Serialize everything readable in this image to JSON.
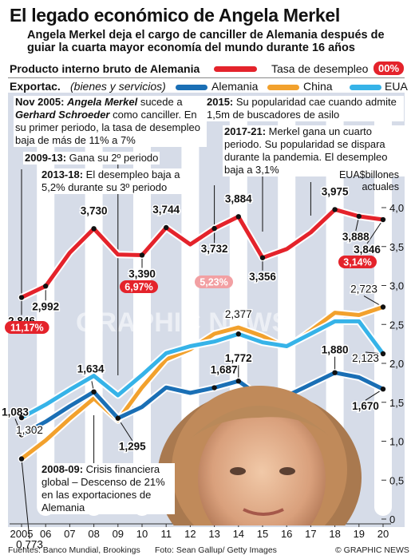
{
  "title": "El legado económico de Angela Merkel",
  "subtitle": "Angela Merkel deja el cargo de canciller de Alemania después de guiar la cuarta mayor economía del mundo durante 16 años",
  "legend": {
    "gdp_label": "Producto interno bruto de Alemania",
    "unemployment_label": "Tasa de desempleo",
    "unemployment_badge": "00%",
    "exports_label": "Exportac.",
    "exports_sub": "(bienes y servicios)",
    "germany": "Alemania",
    "china": "China",
    "usa": "EUA"
  },
  "colors": {
    "gdp": "#e4232b",
    "germany": "#1a6fb5",
    "china": "#f2a12d",
    "usa": "#36b3e8",
    "band": "#ffffff",
    "plot_bg": "#d6dce8"
  },
  "notes": {
    "n2005_date": "Nov 2005:",
    "n2005_name1": "Angela Merkel",
    "n2005_mid": "sucede a",
    "n2005_name2": "Gerhard Schroeder",
    "n2005_end": "como canciller. En su primer periodo, la tasa de desempleo baja de más de 11% a 7%",
    "n2009_date": "2009-13:",
    "n2009_text": "Gana su 2º periodo",
    "n2013_date": "2013-18:",
    "n2013_text": "El desempleo baja a 5,2% durante su 3º periodo",
    "n2015_date": "2015:",
    "n2015_text": "Su popularidad cae cuando admite 1,5m de buscadores de asilo",
    "n2017_date": "2017-21:",
    "n2017_text": "Merkel gana un cuarto periodo. Su popularidad se dispara durante la pandemia. El desempleo baja a 3,1%",
    "n2008_date": "2008-09:",
    "n2008_text": "Crisis financiera global – Descenso de 21% en las exportaciones de Alemania"
  },
  "unit_label": "EUA$billones actuales",
  "chart_data": {
    "type": "line",
    "x": [
      2005,
      2006,
      2007,
      2008,
      2009,
      2010,
      2011,
      2012,
      2013,
      2014,
      2015,
      2016,
      2017,
      2018,
      2019,
      2020
    ],
    "x_tick_labels": [
      "2005",
      "06",
      "07",
      "08",
      "09",
      "10",
      "11",
      "12",
      "13",
      "14",
      "15",
      "16",
      "17",
      "18",
      "19",
      "20"
    ],
    "ylim": [
      0,
      4.0
    ],
    "y_ticks": [
      "0",
      "0,5",
      "1,0",
      "1,5",
      "2,0",
      "2,5",
      "3,0",
      "3,5",
      "4,0"
    ],
    "series": [
      {
        "name": "Producto interno bruto de Alemania",
        "key": "gdp",
        "values": [
          2.846,
          2.992,
          3.421,
          3.73,
          3.397,
          3.39,
          3.744,
          3.527,
          3.732,
          3.884,
          3.356,
          3.468,
          3.682,
          3.975,
          3.888,
          3.846
        ]
      },
      {
        "name": "Alemania",
        "key": "germany",
        "values": [
          1.083,
          1.25,
          1.45,
          1.634,
          1.295,
          1.44,
          1.69,
          1.62,
          1.687,
          1.772,
          1.555,
          1.58,
          1.73,
          1.88,
          1.82,
          1.67
        ]
      },
      {
        "name": "China",
        "key": "china",
        "values": [
          0.773,
          1.01,
          1.29,
          1.55,
          1.27,
          1.69,
          2.05,
          2.18,
          2.38,
          2.46,
          2.35,
          2.2,
          2.42,
          2.65,
          2.62,
          2.723
        ]
      },
      {
        "name": "EUA",
        "key": "usa",
        "values": [
          1.302,
          1.47,
          1.66,
          1.84,
          1.59,
          1.85,
          2.13,
          2.22,
          2.28,
          2.377,
          2.27,
          2.22,
          2.38,
          2.54,
          2.54,
          2.123
        ]
      }
    ],
    "value_labels": [
      {
        "series": "gdp",
        "year": 2005,
        "text": "2,846"
      },
      {
        "series": "gdp",
        "year": 2006,
        "text": "2,992"
      },
      {
        "series": "gdp",
        "year": 2008,
        "text": "3,730"
      },
      {
        "series": "gdp",
        "year": 2010,
        "text": "3,390"
      },
      {
        "series": "gdp",
        "year": 2011,
        "text": "3,744"
      },
      {
        "series": "gdp",
        "year": 2013,
        "text": "3,732"
      },
      {
        "series": "gdp",
        "year": 2014,
        "text": "3,884"
      },
      {
        "series": "gdp",
        "year": 2015,
        "text": "3,356"
      },
      {
        "series": "gdp",
        "year": 2018,
        "text": "3,975"
      },
      {
        "series": "gdp",
        "year": 2019,
        "text": "3,888"
      },
      {
        "series": "gdp",
        "year": 2020,
        "text": "3,846"
      },
      {
        "series": "germany",
        "year": 2005,
        "text": "1,083"
      },
      {
        "series": "germany",
        "year": 2008,
        "text": "1,634"
      },
      {
        "series": "germany",
        "year": 2009,
        "text": "1,295"
      },
      {
        "series": "germany",
        "year": 2013,
        "text": "1,687"
      },
      {
        "series": "germany",
        "year": 2014,
        "text": "1,772"
      },
      {
        "series": "germany",
        "year": 2018,
        "text": "1,880"
      },
      {
        "series": "germany",
        "year": 2020,
        "text": "1,670"
      },
      {
        "series": "china",
        "year": 2005,
        "text": "0,773"
      },
      {
        "series": "china",
        "year": 2020,
        "text": "2,723"
      },
      {
        "series": "usa",
        "year": 2005,
        "text": "1,302"
      },
      {
        "series": "usa",
        "year": 2014,
        "text": "2,377"
      },
      {
        "series": "usa",
        "year": 2020,
        "text": "2,123"
      }
    ],
    "unemployment_badges": [
      {
        "year": 2005,
        "text": "11,17%"
      },
      {
        "year": 2010,
        "text": "6,97%"
      },
      {
        "year": 2013,
        "text": "5,23%"
      },
      {
        "year": 2019,
        "text": "3,14%"
      }
    ]
  },
  "footer": {
    "sources": "Fuentes: Banco Mundial, Brookings",
    "photo": "Foto: Sean Gallup/ Getty Images",
    "copyright": "© GRAPHIC NEWS"
  },
  "watermark": "GRAPHIC NEWS"
}
